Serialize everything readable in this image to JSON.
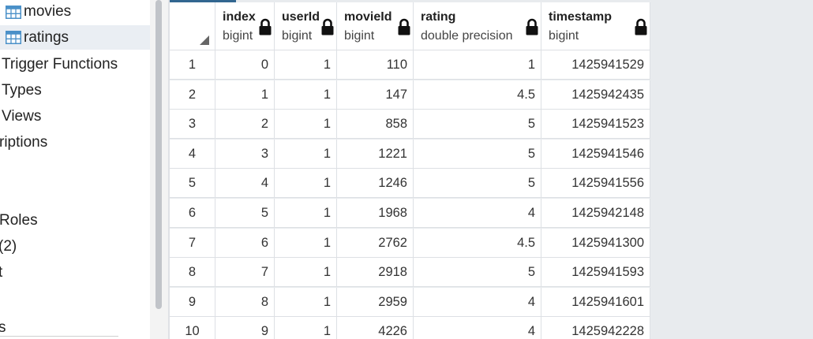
{
  "tree": {
    "items": [
      {
        "label": "movies",
        "icon": "table-icon",
        "selected": false
      },
      {
        "label": "ratings",
        "icon": "table-icon",
        "selected": true
      },
      {
        "label": "Trigger Functions"
      },
      {
        "label": "Types"
      },
      {
        "label": "Views"
      },
      {
        "label": "riptions"
      },
      {
        "label": "Roles"
      },
      {
        "label": "(2)"
      },
      {
        "label": "t"
      },
      {
        "label": "s"
      }
    ]
  },
  "grid": {
    "columns": [
      {
        "name": "index",
        "type": "bigint",
        "locked": true
      },
      {
        "name": "userId",
        "type": "bigint",
        "locked": true
      },
      {
        "name": "movieId",
        "type": "bigint",
        "locked": true
      },
      {
        "name": "rating",
        "type": "double precision",
        "locked": true
      },
      {
        "name": "timestamp",
        "type": "bigint",
        "locked": true
      }
    ],
    "rows": [
      [
        "1",
        "0",
        "1",
        "110",
        "1",
        "1425941529"
      ],
      [
        "2",
        "1",
        "1",
        "147",
        "4.5",
        "1425942435"
      ],
      [
        "3",
        "2",
        "1",
        "858",
        "5",
        "1425941523"
      ],
      [
        "4",
        "3",
        "1",
        "1221",
        "5",
        "1425941546"
      ],
      [
        "5",
        "4",
        "1",
        "1246",
        "5",
        "1425941556"
      ],
      [
        "6",
        "5",
        "1",
        "1968",
        "4",
        "1425942148"
      ],
      [
        "7",
        "6",
        "1",
        "2762",
        "4.5",
        "1425941300"
      ],
      [
        "8",
        "7",
        "1",
        "2918",
        "5",
        "1425941593"
      ],
      [
        "9",
        "8",
        "1",
        "2959",
        "4",
        "1425941601"
      ],
      [
        "10",
        "9",
        "1",
        "4226",
        "4",
        "1425942228"
      ]
    ]
  },
  "colors": {
    "accent": "#326690",
    "selected_bg": "#eaeef3",
    "grid_empty_bg": "#e8ebee",
    "border": "#dde0e4",
    "table_icon": "#4a90c8"
  }
}
